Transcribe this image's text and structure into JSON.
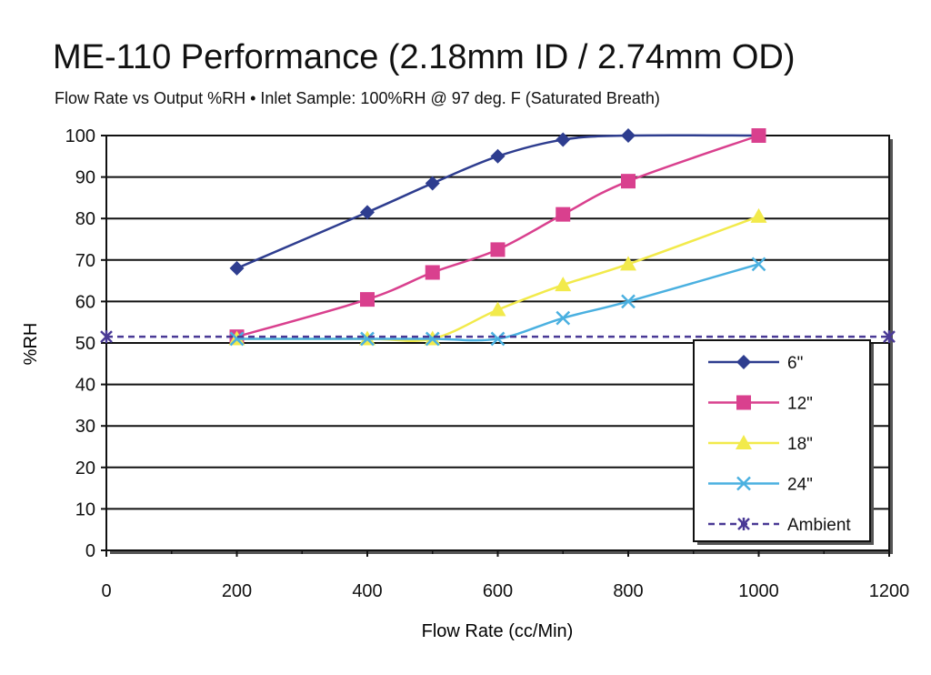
{
  "chart_data": {
    "type": "line",
    "title": "ME-110 Performance (2.18mm ID / 2.74mm OD)",
    "subtitle": "Flow Rate vs Output %RH  •  Inlet Sample: 100%RH @ 97 deg. F (Saturated Breath)",
    "xlabel": "Flow Rate (cc/Min)",
    "ylabel": "%RH",
    "xlim": [
      0,
      1200
    ],
    "ylim": [
      0,
      100
    ],
    "x_ticks": [
      "0",
      "200",
      "400",
      "600",
      "800",
      "1000",
      "1200"
    ],
    "y_ticks": [
      "0",
      "10",
      "20",
      "30",
      "40",
      "50",
      "60",
      "70",
      "80",
      "90",
      "100"
    ],
    "grid": "horizontal",
    "legend_position": "bottom-right",
    "series": [
      {
        "name": "6\"",
        "color": "#2e3d8f",
        "marker": "diamond",
        "dash": false,
        "x": [
          200,
          400,
          500,
          600,
          700,
          800,
          1000
        ],
        "y": [
          68,
          81.5,
          88.5,
          95,
          99,
          100,
          100
        ]
      },
      {
        "name": "12\"",
        "color": "#d9408e",
        "marker": "square",
        "dash": false,
        "x": [
          200,
          400,
          500,
          600,
          700,
          800,
          1000
        ],
        "y": [
          51.5,
          60.5,
          67,
          72.5,
          81,
          89,
          100
        ]
      },
      {
        "name": "18\"",
        "color": "#f2ea4b",
        "marker": "triangle",
        "dash": false,
        "x": [
          200,
          400,
          500,
          600,
          700,
          800,
          1000
        ],
        "y": [
          51,
          51,
          51,
          58,
          64,
          69,
          80.5
        ]
      },
      {
        "name": "24\"",
        "color": "#4ab0e0",
        "marker": "x",
        "dash": false,
        "x": [
          200,
          400,
          500,
          600,
          700,
          800,
          1000
        ],
        "y": [
          51,
          51,
          51,
          51,
          56,
          60,
          69
        ]
      },
      {
        "name": "Ambient",
        "color": "#4a3a96",
        "marker": "star",
        "dash": true,
        "x": [
          0,
          1200
        ],
        "y": [
          51.5,
          51.5
        ]
      }
    ]
  }
}
